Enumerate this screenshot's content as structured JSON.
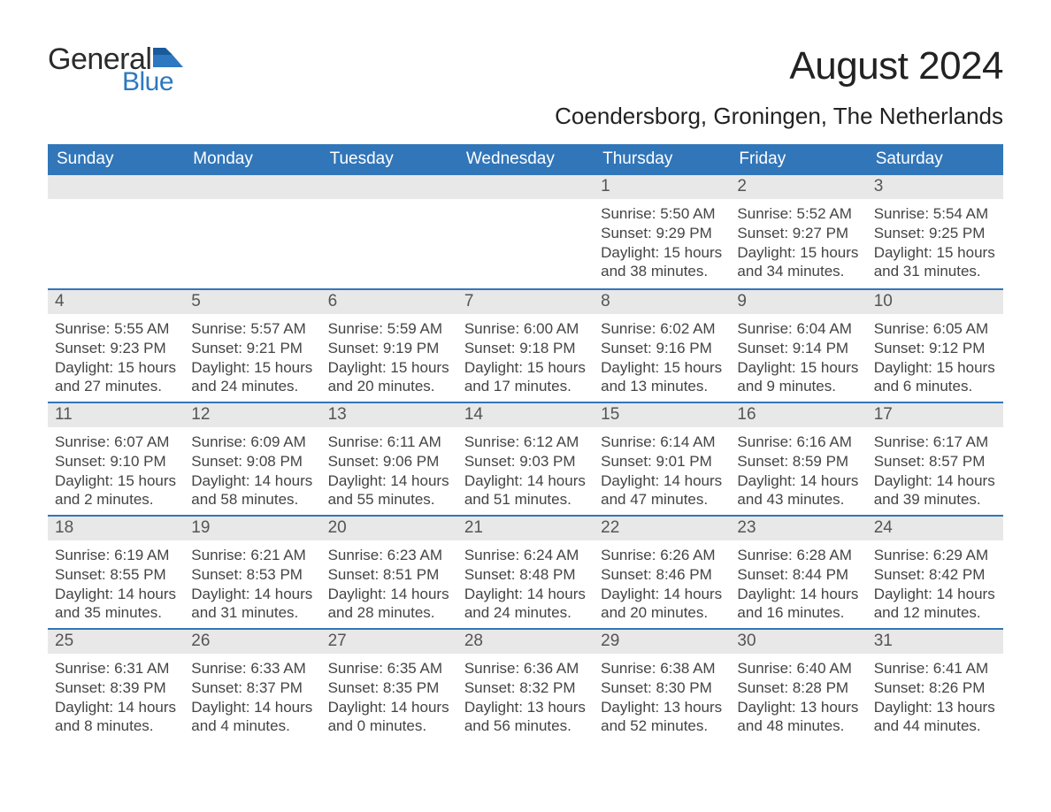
{
  "logo": {
    "part1": "General",
    "part2": "Blue"
  },
  "title": "August 2024",
  "location": "Coendersborg, Groningen, The Netherlands",
  "colors": {
    "header_bg": "#3176b9",
    "date_bg": "#e8e8e8",
    "separator": "#3176b9",
    "background": "#ffffff",
    "text": "#3e3e3e"
  },
  "day_headers": [
    "Sunday",
    "Monday",
    "Tuesday",
    "Wednesday",
    "Thursday",
    "Friday",
    "Saturday"
  ],
  "weeks": [
    [
      {
        "date": "",
        "sunrise": "",
        "sunset": "",
        "daylight": ""
      },
      {
        "date": "",
        "sunrise": "",
        "sunset": "",
        "daylight": ""
      },
      {
        "date": "",
        "sunrise": "",
        "sunset": "",
        "daylight": ""
      },
      {
        "date": "",
        "sunrise": "",
        "sunset": "",
        "daylight": ""
      },
      {
        "date": "1",
        "sunrise": "Sunrise: 5:50 AM",
        "sunset": "Sunset: 9:29 PM",
        "daylight": "Daylight: 15 hours and 38 minutes."
      },
      {
        "date": "2",
        "sunrise": "Sunrise: 5:52 AM",
        "sunset": "Sunset: 9:27 PM",
        "daylight": "Daylight: 15 hours and 34 minutes."
      },
      {
        "date": "3",
        "sunrise": "Sunrise: 5:54 AM",
        "sunset": "Sunset: 9:25 PM",
        "daylight": "Daylight: 15 hours and 31 minutes."
      }
    ],
    [
      {
        "date": "4",
        "sunrise": "Sunrise: 5:55 AM",
        "sunset": "Sunset: 9:23 PM",
        "daylight": "Daylight: 15 hours and 27 minutes."
      },
      {
        "date": "5",
        "sunrise": "Sunrise: 5:57 AM",
        "sunset": "Sunset: 9:21 PM",
        "daylight": "Daylight: 15 hours and 24 minutes."
      },
      {
        "date": "6",
        "sunrise": "Sunrise: 5:59 AM",
        "sunset": "Sunset: 9:19 PM",
        "daylight": "Daylight: 15 hours and 20 minutes."
      },
      {
        "date": "7",
        "sunrise": "Sunrise: 6:00 AM",
        "sunset": "Sunset: 9:18 PM",
        "daylight": "Daylight: 15 hours and 17 minutes."
      },
      {
        "date": "8",
        "sunrise": "Sunrise: 6:02 AM",
        "sunset": "Sunset: 9:16 PM",
        "daylight": "Daylight: 15 hours and 13 minutes."
      },
      {
        "date": "9",
        "sunrise": "Sunrise: 6:04 AM",
        "sunset": "Sunset: 9:14 PM",
        "daylight": "Daylight: 15 hours and 9 minutes."
      },
      {
        "date": "10",
        "sunrise": "Sunrise: 6:05 AM",
        "sunset": "Sunset: 9:12 PM",
        "daylight": "Daylight: 15 hours and 6 minutes."
      }
    ],
    [
      {
        "date": "11",
        "sunrise": "Sunrise: 6:07 AM",
        "sunset": "Sunset: 9:10 PM",
        "daylight": "Daylight: 15 hours and 2 minutes."
      },
      {
        "date": "12",
        "sunrise": "Sunrise: 6:09 AM",
        "sunset": "Sunset: 9:08 PM",
        "daylight": "Daylight: 14 hours and 58 minutes."
      },
      {
        "date": "13",
        "sunrise": "Sunrise: 6:11 AM",
        "sunset": "Sunset: 9:06 PM",
        "daylight": "Daylight: 14 hours and 55 minutes."
      },
      {
        "date": "14",
        "sunrise": "Sunrise: 6:12 AM",
        "sunset": "Sunset: 9:03 PM",
        "daylight": "Daylight: 14 hours and 51 minutes."
      },
      {
        "date": "15",
        "sunrise": "Sunrise: 6:14 AM",
        "sunset": "Sunset: 9:01 PM",
        "daylight": "Daylight: 14 hours and 47 minutes."
      },
      {
        "date": "16",
        "sunrise": "Sunrise: 6:16 AM",
        "sunset": "Sunset: 8:59 PM",
        "daylight": "Daylight: 14 hours and 43 minutes."
      },
      {
        "date": "17",
        "sunrise": "Sunrise: 6:17 AM",
        "sunset": "Sunset: 8:57 PM",
        "daylight": "Daylight: 14 hours and 39 minutes."
      }
    ],
    [
      {
        "date": "18",
        "sunrise": "Sunrise: 6:19 AM",
        "sunset": "Sunset: 8:55 PM",
        "daylight": "Daylight: 14 hours and 35 minutes."
      },
      {
        "date": "19",
        "sunrise": "Sunrise: 6:21 AM",
        "sunset": "Sunset: 8:53 PM",
        "daylight": "Daylight: 14 hours and 31 minutes."
      },
      {
        "date": "20",
        "sunrise": "Sunrise: 6:23 AM",
        "sunset": "Sunset: 8:51 PM",
        "daylight": "Daylight: 14 hours and 28 minutes."
      },
      {
        "date": "21",
        "sunrise": "Sunrise: 6:24 AM",
        "sunset": "Sunset: 8:48 PM",
        "daylight": "Daylight: 14 hours and 24 minutes."
      },
      {
        "date": "22",
        "sunrise": "Sunrise: 6:26 AM",
        "sunset": "Sunset: 8:46 PM",
        "daylight": "Daylight: 14 hours and 20 minutes."
      },
      {
        "date": "23",
        "sunrise": "Sunrise: 6:28 AM",
        "sunset": "Sunset: 8:44 PM",
        "daylight": "Daylight: 14 hours and 16 minutes."
      },
      {
        "date": "24",
        "sunrise": "Sunrise: 6:29 AM",
        "sunset": "Sunset: 8:42 PM",
        "daylight": "Daylight: 14 hours and 12 minutes."
      }
    ],
    [
      {
        "date": "25",
        "sunrise": "Sunrise: 6:31 AM",
        "sunset": "Sunset: 8:39 PM",
        "daylight": "Daylight: 14 hours and 8 minutes."
      },
      {
        "date": "26",
        "sunrise": "Sunrise: 6:33 AM",
        "sunset": "Sunset: 8:37 PM",
        "daylight": "Daylight: 14 hours and 4 minutes."
      },
      {
        "date": "27",
        "sunrise": "Sunrise: 6:35 AM",
        "sunset": "Sunset: 8:35 PM",
        "daylight": "Daylight: 14 hours and 0 minutes."
      },
      {
        "date": "28",
        "sunrise": "Sunrise: 6:36 AM",
        "sunset": "Sunset: 8:32 PM",
        "daylight": "Daylight: 13 hours and 56 minutes."
      },
      {
        "date": "29",
        "sunrise": "Sunrise: 6:38 AM",
        "sunset": "Sunset: 8:30 PM",
        "daylight": "Daylight: 13 hours and 52 minutes."
      },
      {
        "date": "30",
        "sunrise": "Sunrise: 6:40 AM",
        "sunset": "Sunset: 8:28 PM",
        "daylight": "Daylight: 13 hours and 48 minutes."
      },
      {
        "date": "31",
        "sunrise": "Sunrise: 6:41 AM",
        "sunset": "Sunset: 8:26 PM",
        "daylight": "Daylight: 13 hours and 44 minutes."
      }
    ]
  ],
  "table_style": {
    "type": "calendar",
    "columns": 7,
    "rows": 5,
    "header_text_color": "#ffffff",
    "header_fontsize": 19,
    "date_fontsize": 19,
    "detail_fontsize": 17,
    "title_fontsize": 44,
    "location_fontsize": 26
  }
}
